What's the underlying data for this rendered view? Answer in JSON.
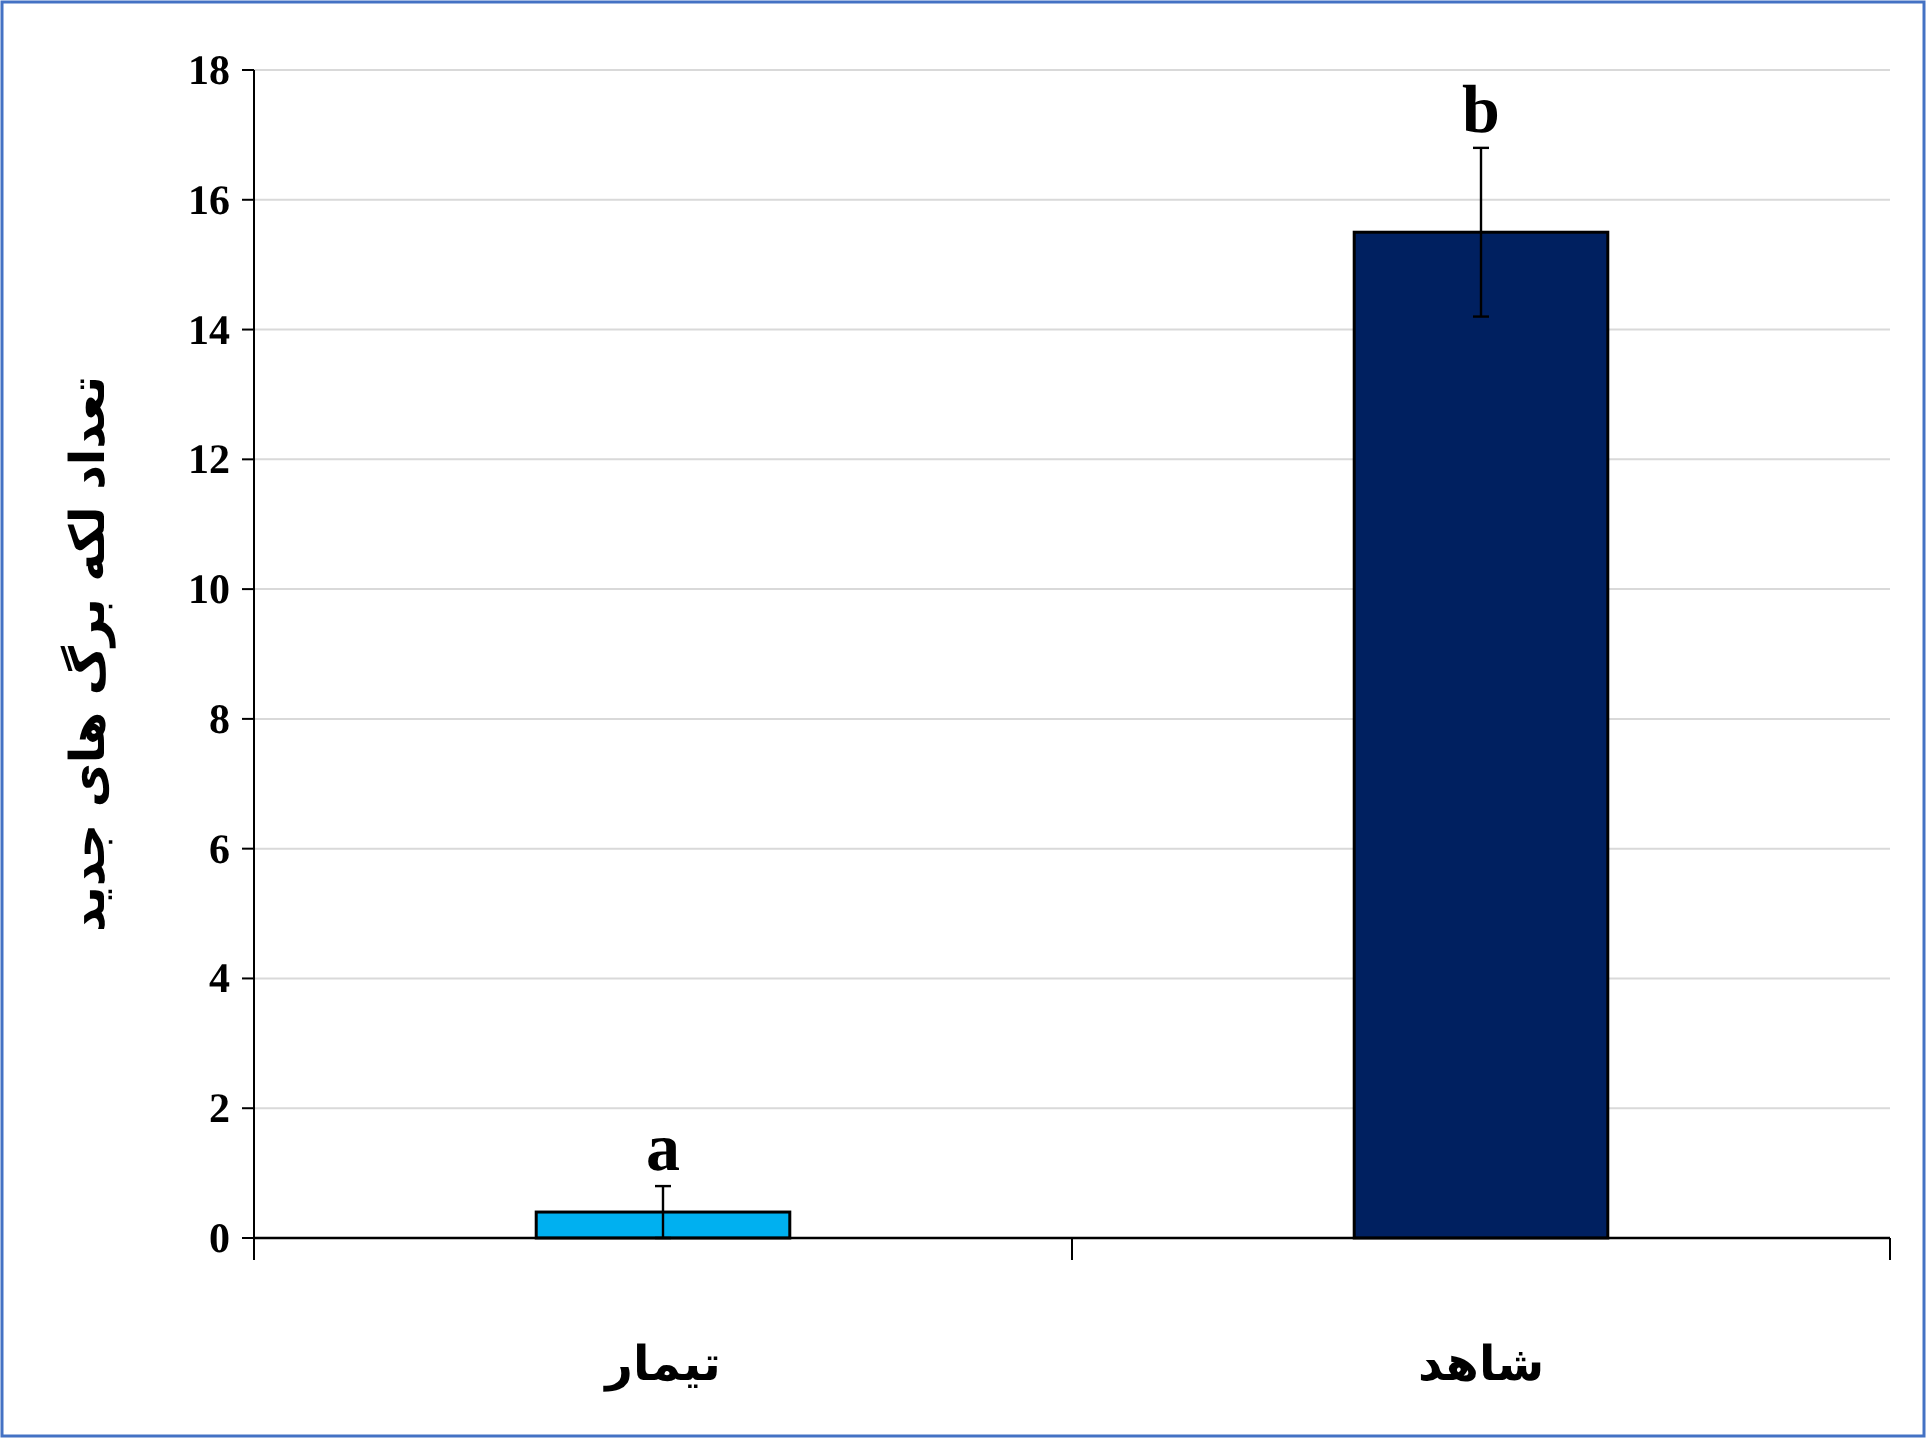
{
  "chart_data": {
    "type": "bar",
    "ylabel": "تعداد لکه برگ های جدید",
    "categories": [
      "تیمار",
      "شاهد"
    ],
    "values": [
      0.4,
      15.5
    ],
    "errors": [
      0.4,
      1.3
    ],
    "colors": [
      "#00b0f0",
      "#002060"
    ],
    "ylim": [
      0,
      18
    ],
    "yticks": [
      0,
      2,
      4,
      6,
      8,
      10,
      12,
      14,
      16,
      18
    ],
    "grid": "y",
    "annotations": [
      {
        "text": "a",
        "x": "تیمار",
        "y": 0.8
      },
      {
        "text": "b",
        "x": "شاهد",
        "y": 16.8
      }
    ]
  }
}
